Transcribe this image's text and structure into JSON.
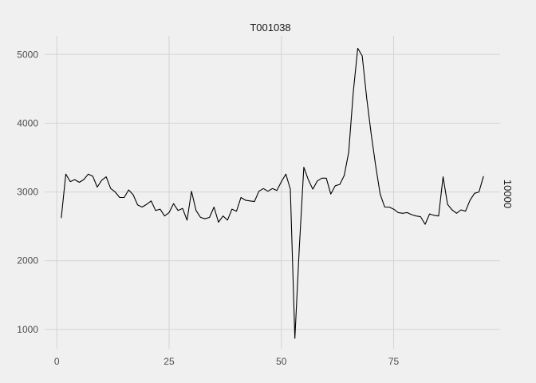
{
  "chart_data": {
    "type": "line",
    "title": "T001038",
    "facet_label": "10000",
    "xlabel": "",
    "ylabel": "",
    "xlim": [
      -2.7,
      98.7
    ],
    "ylim": [
      720,
      5270
    ],
    "x_ticks": [
      0,
      25,
      50,
      75
    ],
    "y_ticks": [
      1000,
      2000,
      3000,
      4000,
      5000
    ],
    "grid": true,
    "background": "#f0f0f0",
    "grid_color": "#d4d4d4",
    "line_color": "#000000",
    "series": [
      {
        "x": [
          1,
          2,
          3,
          4,
          5,
          6,
          7,
          8,
          9,
          10,
          11,
          12,
          13,
          14,
          15,
          16,
          17,
          18,
          19,
          20,
          21,
          22,
          23,
          24,
          25,
          26,
          27,
          28,
          29,
          30,
          31,
          32,
          33,
          34,
          35,
          36,
          37,
          38,
          39,
          40,
          41,
          42,
          43,
          44,
          45,
          46,
          47,
          48,
          49,
          50,
          51,
          52,
          53,
          54,
          55,
          56,
          57,
          58,
          59,
          60,
          61,
          62,
          63,
          64,
          65,
          66,
          67,
          68,
          69,
          70,
          71,
          72,
          73,
          74,
          75,
          76,
          77,
          78,
          79,
          80,
          81,
          82,
          83,
          84,
          85,
          86,
          87,
          88,
          89,
          90,
          91,
          92,
          93,
          94,
          95
        ],
        "values": [
          2620,
          3260,
          3150,
          3180,
          3140,
          3180,
          3260,
          3230,
          3070,
          3170,
          3220,
          3050,
          3000,
          2920,
          2920,
          3030,
          2960,
          2810,
          2780,
          2820,
          2870,
          2730,
          2750,
          2650,
          2700,
          2830,
          2730,
          2760,
          2590,
          3010,
          2730,
          2630,
          2610,
          2630,
          2780,
          2560,
          2650,
          2590,
          2750,
          2720,
          2920,
          2880,
          2870,
          2860,
          3010,
          3050,
          3010,
          3050,
          3020,
          3150,
          3260,
          3040,
          870,
          2200,
          3360,
          3180,
          3040,
          3160,
          3200,
          3200,
          2970,
          3090,
          3110,
          3240,
          3580,
          4450,
          5090,
          4980,
          4360,
          3840,
          3380,
          2970,
          2780,
          2780,
          2750,
          2700,
          2690,
          2700,
          2670,
          2650,
          2640,
          2530,
          2680,
          2660,
          2650,
          3220,
          2820,
          2740,
          2690,
          2740,
          2720,
          2880,
          2980,
          3000,
          3230
        ]
      }
    ]
  }
}
